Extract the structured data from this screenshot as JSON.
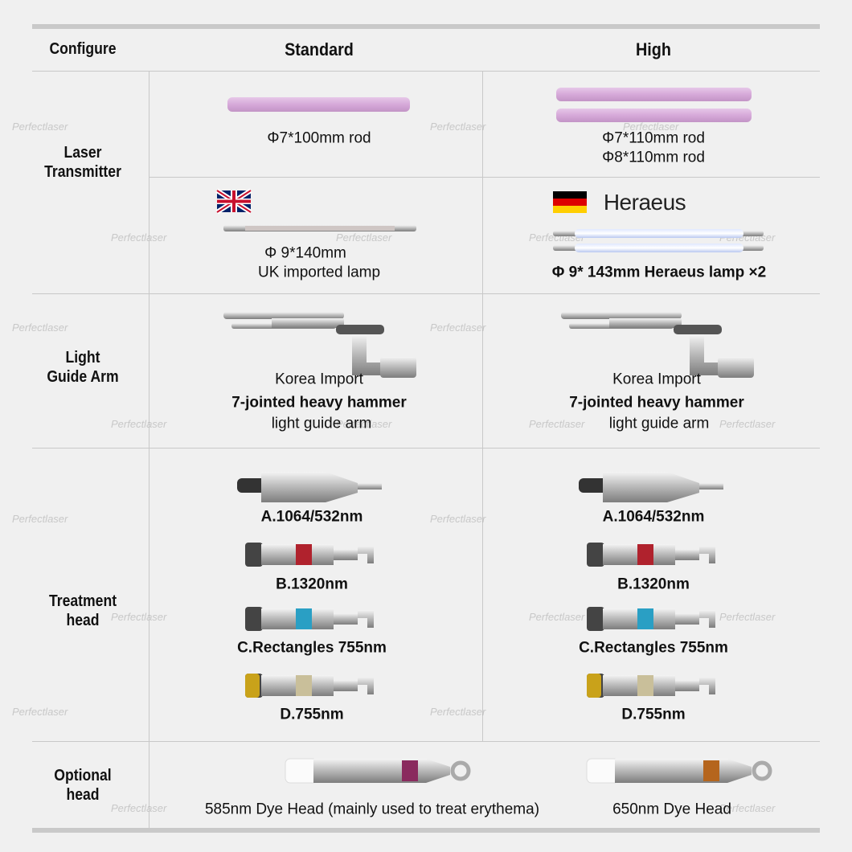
{
  "watermark": "Perfectlaser",
  "header": {
    "columns": [
      "Configure",
      "Standard",
      "High"
    ]
  },
  "rows": [
    {
      "label": [
        "Laser",
        "Transmitter"
      ],
      "parts": [
        {
          "standard": [
            "Φ7*100mm rod"
          ],
          "high": [
            "Φ7*110mm rod",
            "Φ8*110mm rod"
          ]
        },
        {
          "standard": [
            "Φ 9*140mm",
            "UK imported lamp"
          ],
          "high_brand": "Heraeus",
          "high": [
            "Φ 9* 143mm Heraeus lamp ×2"
          ]
        }
      ]
    },
    {
      "label": [
        "Light",
        "Guide Arm"
      ],
      "standard": [
        "Korea Import",
        "7-jointed heavy hammer",
        "light guide arm"
      ],
      "high": [
        "Korea Import",
        "7-jointed heavy hammer",
        "light guide arm"
      ]
    },
    {
      "label": [
        "Treatment",
        "head"
      ],
      "standard": [
        "A.1064/532nm",
        "B.1320nm",
        "C.Rectangles 755nm",
        "D.755nm"
      ],
      "high": [
        "A.1064/532nm",
        "B.1320nm",
        "C.Rectangles 755nm",
        "D.755nm"
      ]
    },
    {
      "label": [
        "Optional",
        "head"
      ],
      "standard": [
        "585nm Dye Head (mainly used to treat erythema)"
      ],
      "high": [
        "650nm Dye Head"
      ]
    }
  ]
}
